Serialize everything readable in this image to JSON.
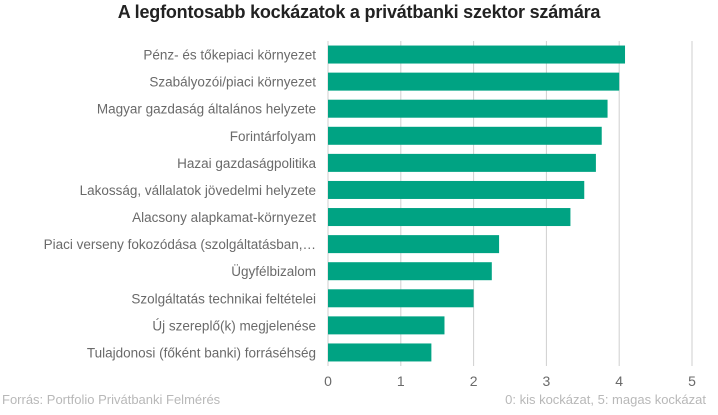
{
  "chart_data": {
    "type": "bar",
    "orientation": "horizontal",
    "title": "A legfontosabb kockázatok a privátbanki szektor számára",
    "categories": [
      "Pénz- és tőkepiaci környezet",
      "Szabályozói/piaci környezet",
      "Magyar gazdaság általános helyzete",
      "Forintárfolyam",
      "Hazai gazdaságpolitika",
      "Lakosság, vállalatok jövedelmi helyzete",
      "Alacsony alapkamat-környezet",
      "Piaci verseny fokozódása (szolgáltatásban,…",
      "Ügyfélbizalom",
      "Szolgáltatás technikai feltételei",
      "Új szereplő(k) megjelenése",
      "Tulajdonosi (főként banki) forráséhség"
    ],
    "values": [
      4.08,
      4.0,
      3.84,
      3.76,
      3.68,
      3.52,
      3.33,
      2.35,
      2.25,
      2.0,
      1.6,
      1.42
    ],
    "xlim": [
      0,
      5
    ],
    "xticks": [
      "0",
      "1",
      "2",
      "3",
      "4",
      "5"
    ],
    "grid": true,
    "bar_color": "#00a383"
  },
  "footer": {
    "source": "Forrás: Portfolio Privátbanki Felmérés",
    "scale_note": "0: kis kockázat, 5: magas kockázat"
  }
}
